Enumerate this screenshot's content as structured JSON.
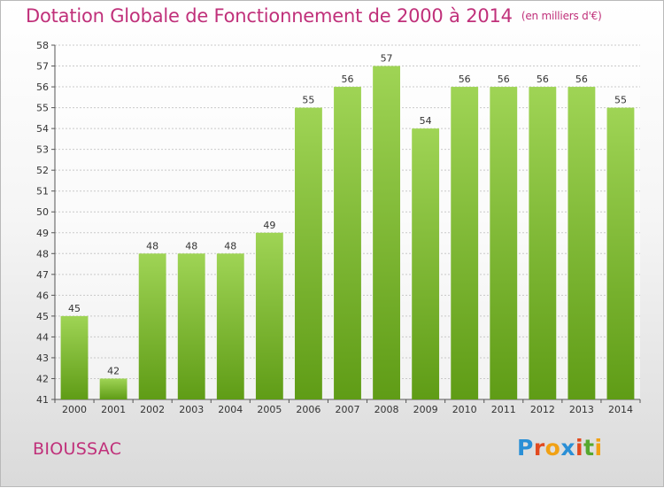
{
  "header": {
    "title": "Dotation Globale de Fonctionnement de 2000 à 2014",
    "unit": "(en milliers d'€)"
  },
  "footer": {
    "commune": "BIOUSSAC",
    "logo_letters": [
      "P",
      "r",
      "o",
      "x",
      "i",
      "t",
      "i"
    ],
    "logo_colors": [
      "#2a8fd6",
      "#e24a1f",
      "#f1a114",
      "#2a8fd6",
      "#e24a1f",
      "#56a82e",
      "#f1a114"
    ]
  },
  "colors": {
    "bar_top": "#9fd455",
    "bar_bottom": "#5f9c16",
    "title": "#c0307a",
    "grid": "#c9c9c9"
  },
  "chart_data": {
    "type": "bar",
    "title": "Dotation Globale de Fonctionnement de 2000 à 2014",
    "subtitle": "(en milliers d'€)",
    "xlabel": "",
    "ylabel": "",
    "categories": [
      "2000",
      "2001",
      "2002",
      "2003",
      "2004",
      "2005",
      "2006",
      "2007",
      "2008",
      "2009",
      "2010",
      "2011",
      "2012",
      "2013",
      "2014"
    ],
    "values": [
      45,
      42,
      48,
      48,
      48,
      49,
      55,
      56,
      57,
      54,
      56,
      56,
      56,
      56,
      55
    ],
    "ylim": [
      41,
      58
    ],
    "yticks": [
      41,
      42,
      43,
      44,
      45,
      46,
      47,
      48,
      49,
      50,
      51,
      52,
      53,
      54,
      55,
      56,
      57,
      58
    ],
    "grid": true,
    "data_labels": true
  }
}
